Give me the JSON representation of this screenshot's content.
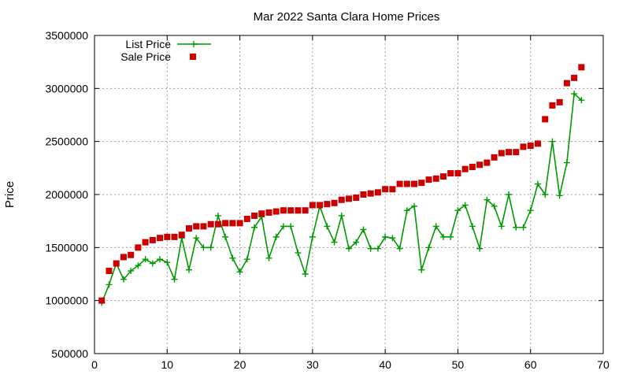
{
  "chart_data": {
    "type": "line",
    "title": "Mar 2022 Santa Clara Home Prices",
    "xlabel": "",
    "ylabel": "Price",
    "xlim": [
      0,
      70
    ],
    "ylim": [
      500000,
      3500000
    ],
    "xticks": [
      0,
      10,
      20,
      30,
      40,
      50,
      60,
      70
    ],
    "yticks": [
      500000,
      1000000,
      1500000,
      2000000,
      2500000,
      3000000,
      3500000
    ],
    "grid": true,
    "legend_position": "top-left",
    "series": [
      {
        "name": "List Price",
        "style": "line-plus",
        "color": "#009900",
        "x": [
          1,
          2,
          3,
          4,
          5,
          6,
          7,
          8,
          9,
          10,
          11,
          12,
          13,
          14,
          15,
          16,
          17,
          18,
          19,
          20,
          21,
          22,
          23,
          24,
          25,
          26,
          27,
          28,
          29,
          30,
          31,
          32,
          33,
          34,
          35,
          36,
          37,
          38,
          39,
          40,
          41,
          42,
          43,
          44,
          45,
          46,
          47,
          48,
          49,
          50,
          51,
          52,
          53,
          54,
          55,
          56,
          57,
          58,
          59,
          60,
          61,
          62,
          63,
          64,
          65,
          66,
          67
        ],
        "y": [
          980000,
          1150000,
          1350000,
          1200000,
          1280000,
          1330000,
          1390000,
          1350000,
          1390000,
          1360000,
          1200000,
          1590000,
          1290000,
          1590000,
          1500000,
          1500000,
          1800000,
          1600000,
          1400000,
          1270000,
          1390000,
          1690000,
          1790000,
          1400000,
          1600000,
          1700000,
          1700000,
          1450000,
          1250000,
          1600000,
          1890000,
          1700000,
          1550000,
          1800000,
          1490000,
          1550000,
          1670000,
          1490000,
          1490000,
          1600000,
          1590000,
          1490000,
          1850000,
          1890000,
          1290000,
          1500000,
          1700000,
          1600000,
          1600000,
          1850000,
          1900000,
          1700000,
          1490000,
          1950000,
          1890000,
          1700000,
          2000000,
          1690000,
          1690000,
          1850000,
          2100000,
          2000000,
          2500000,
          1990000,
          2300000,
          2950000,
          2890000
        ]
      },
      {
        "name": "Sale Price",
        "style": "square-points",
        "color": "#cc0000",
        "x": [
          1,
          2,
          3,
          4,
          5,
          6,
          7,
          8,
          9,
          10,
          11,
          12,
          13,
          14,
          15,
          16,
          17,
          18,
          19,
          20,
          21,
          22,
          23,
          24,
          25,
          26,
          27,
          28,
          29,
          30,
          31,
          32,
          33,
          34,
          35,
          36,
          37,
          38,
          39,
          40,
          41,
          42,
          43,
          44,
          45,
          46,
          47,
          48,
          49,
          50,
          51,
          52,
          53,
          54,
          55,
          56,
          57,
          58,
          59,
          60,
          61,
          62,
          63,
          64,
          65,
          66,
          67
        ],
        "y": [
          1000000,
          1280000,
          1350000,
          1410000,
          1430000,
          1500000,
          1550000,
          1570000,
          1590000,
          1600000,
          1600000,
          1620000,
          1680000,
          1700000,
          1700000,
          1720000,
          1720000,
          1730000,
          1730000,
          1730000,
          1770000,
          1800000,
          1820000,
          1830000,
          1840000,
          1850000,
          1850000,
          1850000,
          1850000,
          1900000,
          1900000,
          1910000,
          1920000,
          1950000,
          1960000,
          1970000,
          2000000,
          2010000,
          2020000,
          2050000,
          2050000,
          2100000,
          2100000,
          2100000,
          2110000,
          2140000,
          2150000,
          2170000,
          2200000,
          2200000,
          2240000,
          2260000,
          2280000,
          2300000,
          2350000,
          2390000,
          2400000,
          2400000,
          2450000,
          2460000,
          2480000,
          2710000,
          2840000,
          2870000,
          3050000,
          3100000,
          3200000
        ]
      }
    ]
  }
}
